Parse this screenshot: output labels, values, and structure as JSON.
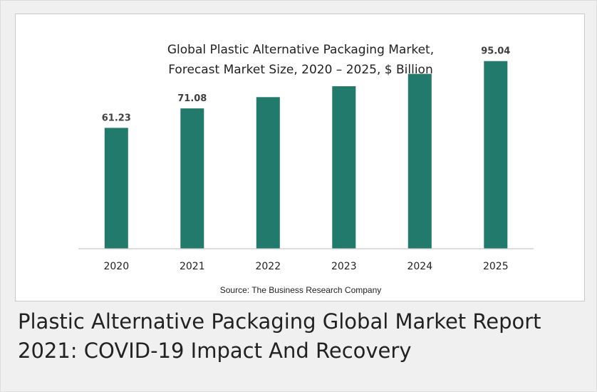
{
  "chart_data": {
    "type": "bar",
    "title_line1": "Global Plastic Alternative Packaging Market,",
    "title_line2": "Forecast Market Size, 2020 – 2025, $ Billion",
    "categories": [
      "2020",
      "2021",
      "2022",
      "2023",
      "2024",
      "2025"
    ],
    "values": [
      61.23,
      71.08,
      76.8,
      82.3,
      88.6,
      95.04
    ],
    "data_labels": [
      "61.23",
      "71.08",
      "",
      "",
      "",
      "95.04"
    ],
    "ylim": [
      0,
      100
    ],
    "grid": false,
    "legend": "none",
    "bar_color": "#217a6b",
    "source": "Source: The Business Research Company"
  },
  "caption": {
    "line1": "Plastic Alternative Packaging Global Market Report",
    "line2": "2021: COVID-19 Impact And Recovery"
  }
}
